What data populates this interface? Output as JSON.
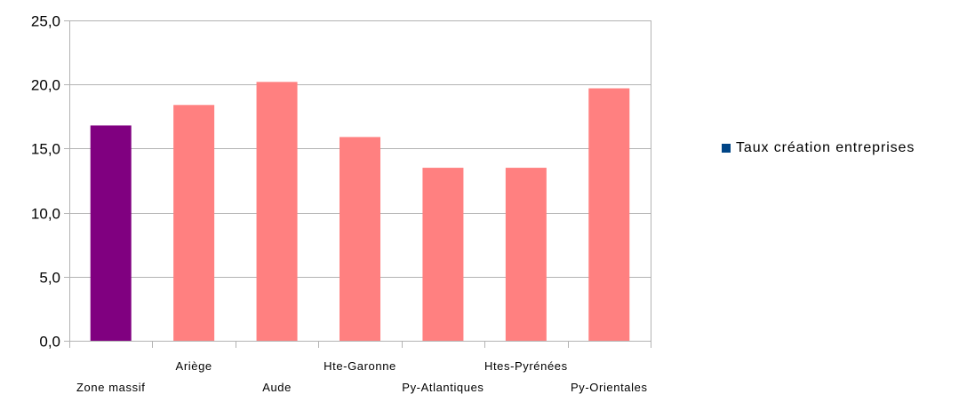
{
  "chart_data": {
    "type": "bar",
    "categories": [
      "Zone massif",
      "Ariège",
      "Aude",
      "Hte-Garonne",
      "Py-Atlantiques",
      "Htes-Pyrénées",
      "Py-Orientales"
    ],
    "series": [
      {
        "name": "Taux création entreprises",
        "values": [
          16.8,
          18.4,
          20.2,
          15.9,
          13.5,
          13.5,
          19.7
        ]
      }
    ],
    "ylim": [
      0,
      25
    ],
    "yticks": [
      0,
      5,
      10,
      15,
      20,
      25
    ],
    "ytick_labels": [
      "0,0",
      "5,0",
      "10,0",
      "15,0",
      "20,0",
      "25,0"
    ],
    "grid": true,
    "legend_position": "right",
    "colors": {
      "highlight_bar": "#800080",
      "bar": "#ff8080",
      "legend_swatch": "#004586",
      "grid": "#b3b3b3"
    }
  }
}
